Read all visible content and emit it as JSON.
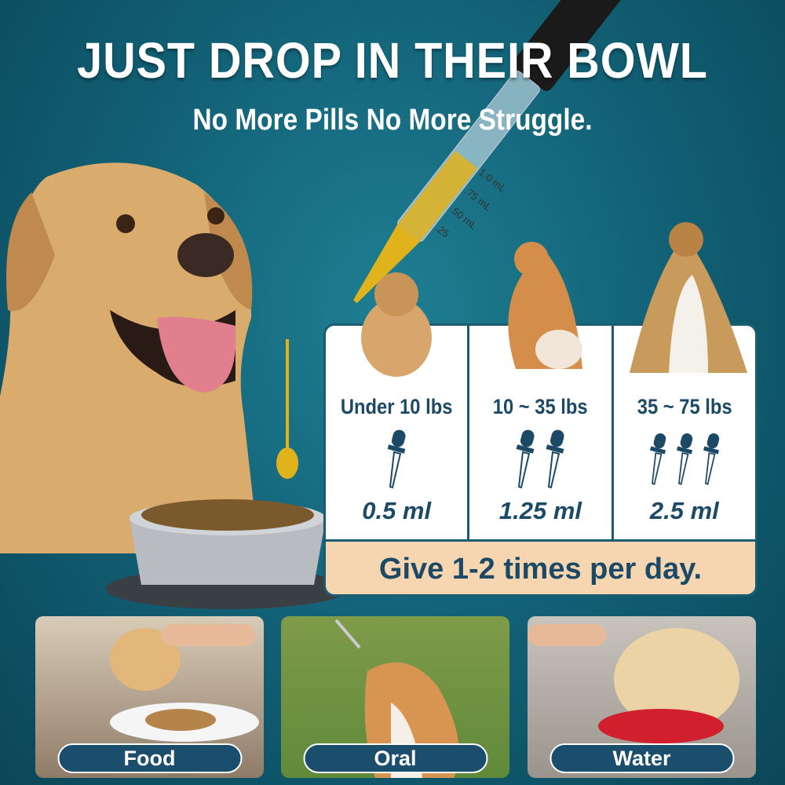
{
  "header": {
    "title": "JUST DROP IN THEIR BOWL",
    "subtitle": "No More Pills No More Struggle."
  },
  "dropper": {
    "marks": [
      "1.0 mL",
      ".75 mL",
      ".50 mL",
      ".25"
    ]
  },
  "dosage": {
    "columns": [
      {
        "weight": "Under 10 lbs",
        "drops": 1,
        "dose": "0.5 ml"
      },
      {
        "weight": "10 ~ 35 lbs",
        "drops": 2,
        "dose": "1.25 ml"
      },
      {
        "weight": "35 ~ 75 lbs",
        "drops": 3,
        "dose": "2.5 ml"
      }
    ],
    "frequency": "Give 1-2 times per day."
  },
  "methods": [
    {
      "label": "Food"
    },
    {
      "label": "Oral"
    },
    {
      "label": "Water"
    }
  ],
  "colors": {
    "background": "#115e73",
    "navy": "#1c4a66",
    "peach": "#f6d6b0",
    "oil": "#e0b21c"
  }
}
